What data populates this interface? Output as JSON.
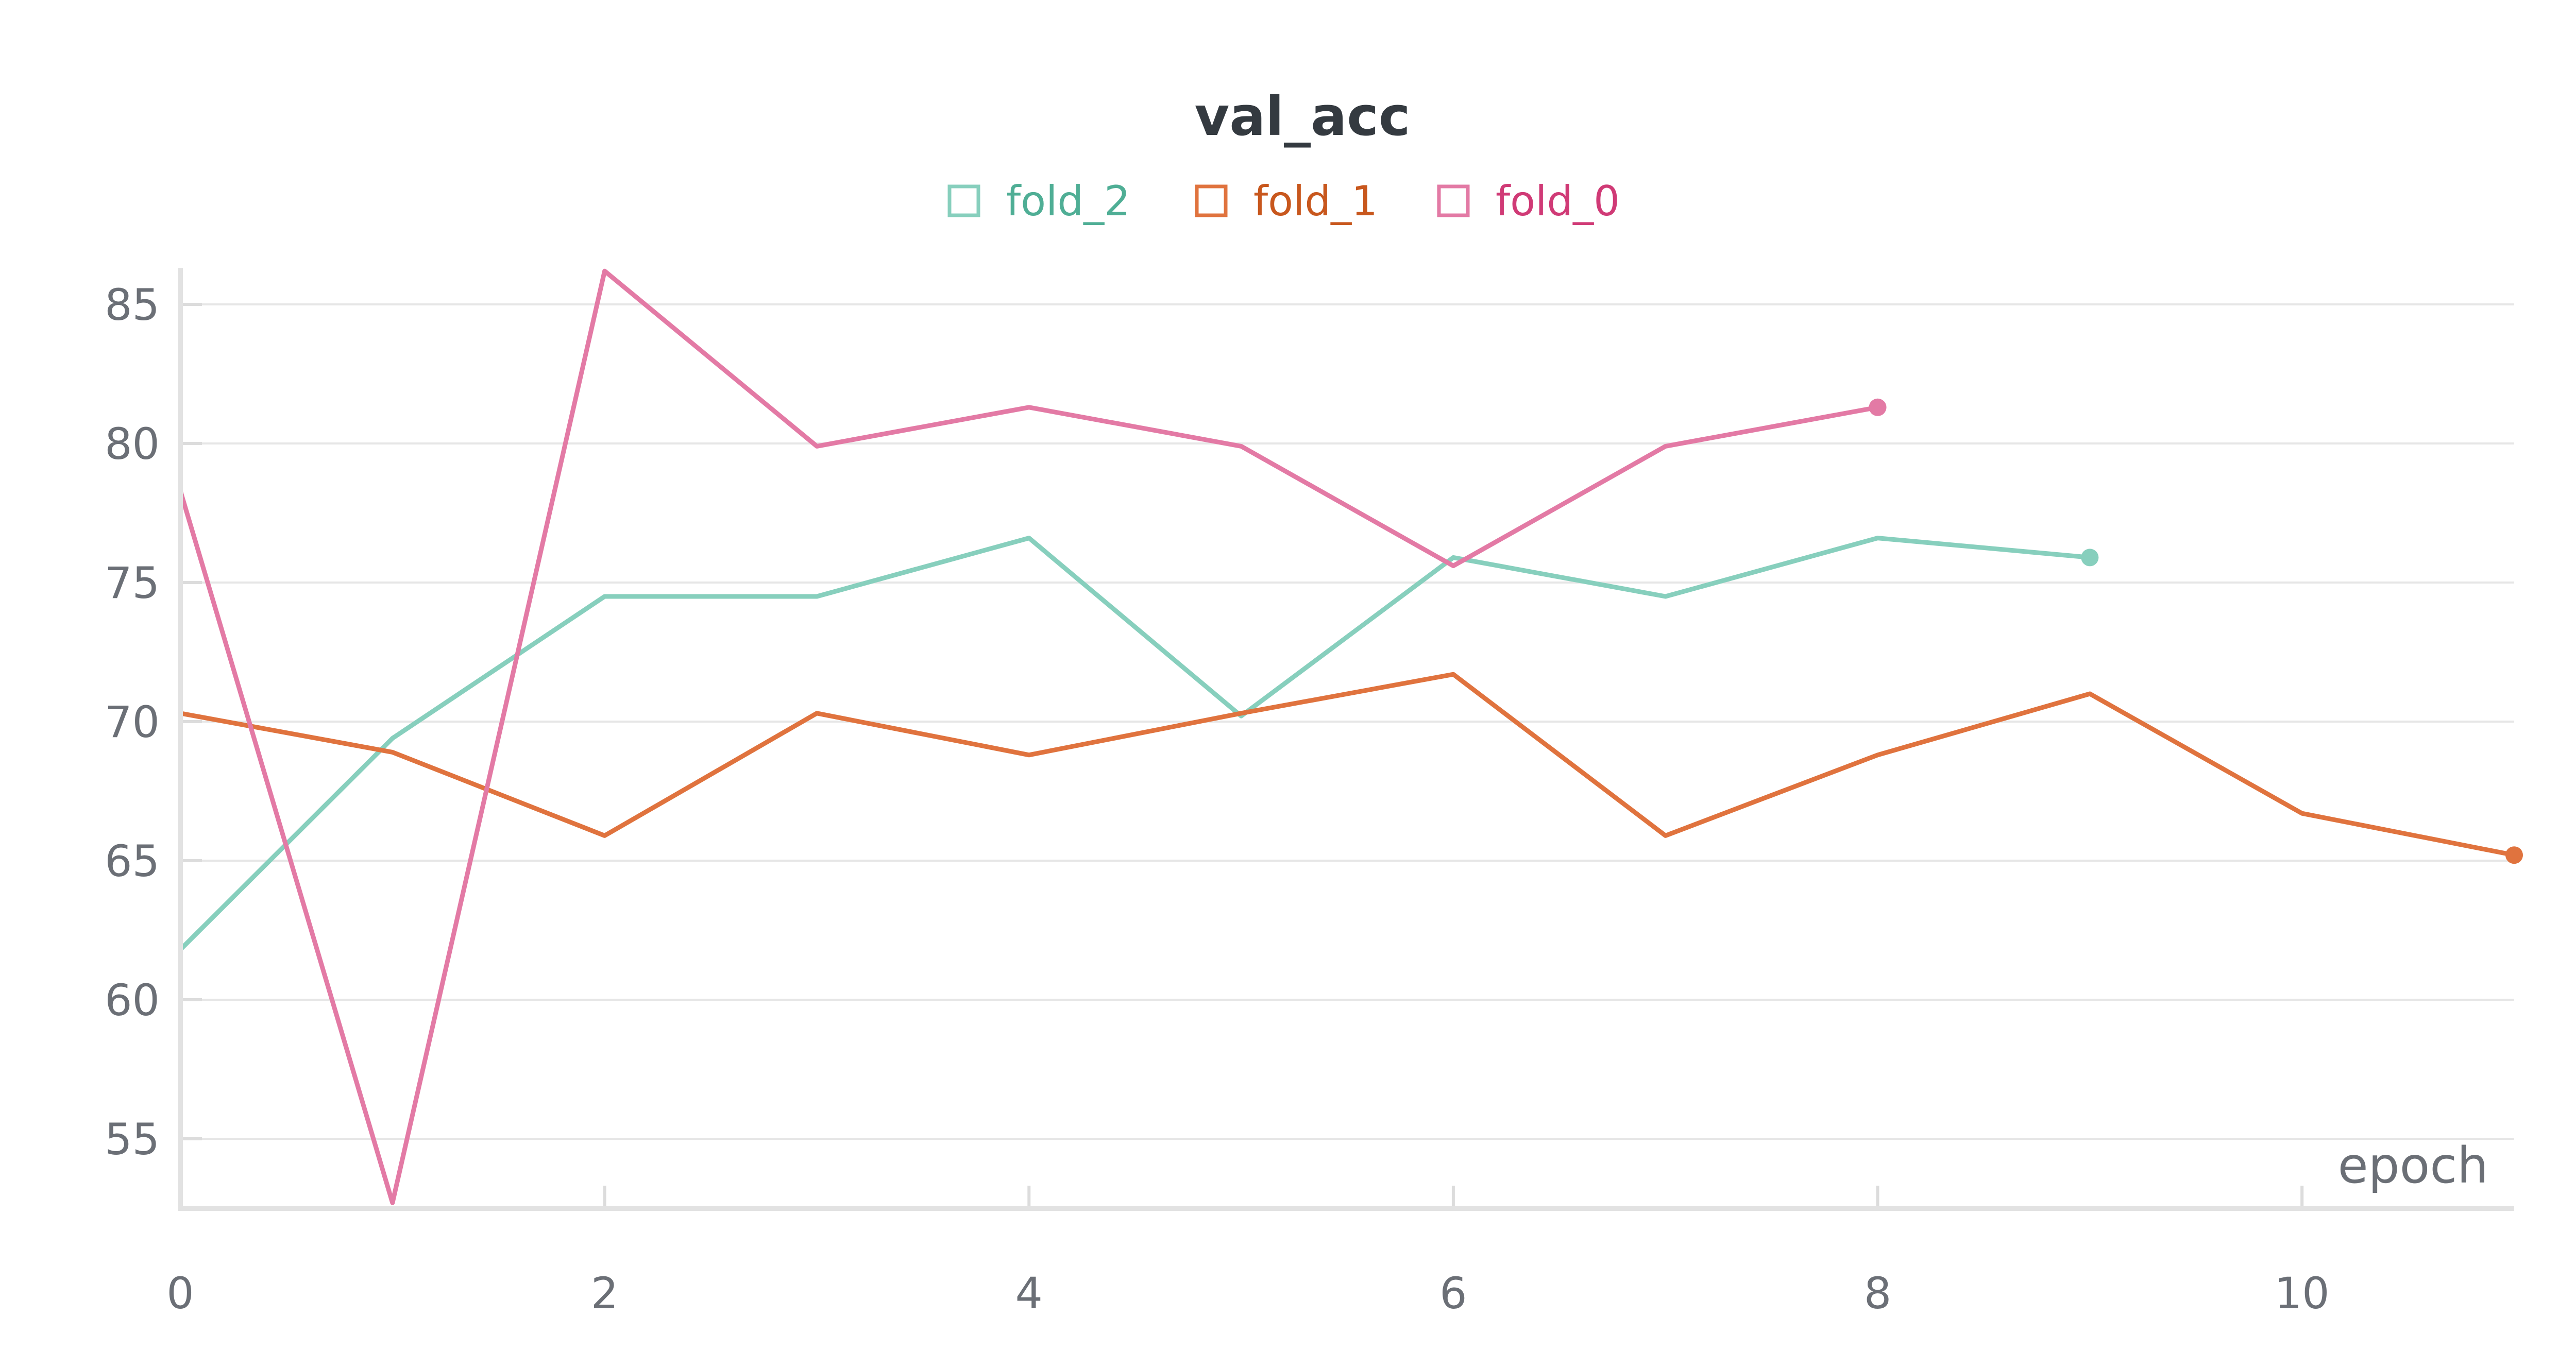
{
  "chart_data": {
    "type": "line",
    "title": "val_acc",
    "xlabel": "epoch",
    "ylabel": "",
    "xlim": [
      0,
      11
    ],
    "ylim": [
      52.5,
      86.5
    ],
    "xticks": [
      0,
      2,
      4,
      6,
      8,
      10
    ],
    "yticks": [
      55,
      60,
      65,
      70,
      75,
      80,
      85
    ],
    "grid": "horizontal",
    "legend_position": "top-center",
    "series": [
      {
        "name": "fold_2",
        "color": "#87cfbd",
        "text_color": "#4fae95",
        "x": [
          0,
          1,
          2,
          3,
          4,
          5,
          6,
          7,
          8,
          9
        ],
        "y": [
          61.8,
          69.4,
          74.5,
          74.5,
          76.6,
          70.2,
          75.9,
          74.5,
          76.6,
          75.9
        ]
      },
      {
        "name": "fold_1",
        "color": "#e0733e",
        "text_color": "#c8571d",
        "x": [
          0,
          1,
          2,
          3,
          4,
          5,
          6,
          7,
          8,
          9,
          10,
          11
        ],
        "y": [
          70.3,
          68.9,
          65.9,
          70.3,
          68.8,
          70.3,
          71.7,
          65.9,
          68.8,
          71.0,
          66.7,
          65.2
        ]
      },
      {
        "name": "fold_0",
        "color": "#e37aa5",
        "text_color": "#d03a76",
        "x": [
          0,
          1,
          2,
          3,
          4,
          5,
          6,
          7,
          8
        ],
        "y": [
          78.3,
          52.7,
          86.2,
          79.9,
          81.3,
          79.9,
          75.6,
          79.9,
          81.3
        ]
      }
    ]
  }
}
